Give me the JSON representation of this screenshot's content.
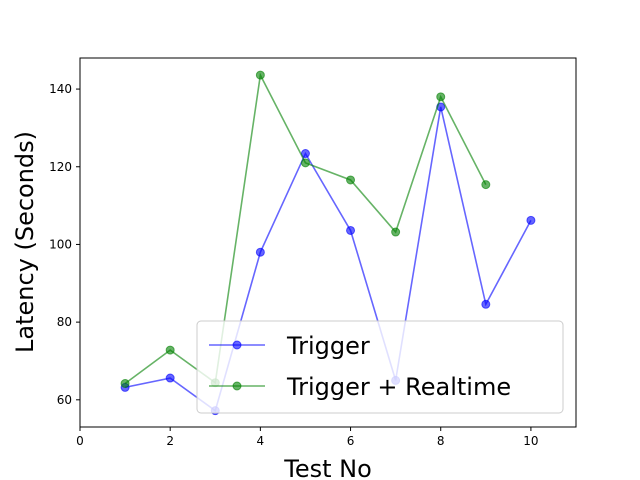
{
  "chart_data": {
    "type": "line",
    "xlabel": "Test No",
    "ylabel": "Latency (Seconds)",
    "xlim": [
      0,
      11
    ],
    "ylim": [
      53,
      148
    ],
    "xticks": [
      0,
      2,
      4,
      6,
      8,
      10
    ],
    "yticks": [
      60,
      80,
      100,
      120,
      140
    ],
    "grid": false,
    "legend_position": "lower-right",
    "series": [
      {
        "name": "Trigger",
        "color": "#0000ff",
        "x": [
          1,
          2,
          3,
          4,
          5,
          6,
          7,
          8,
          9,
          10
        ],
        "y": [
          63.2,
          65.6,
          57.2,
          98.0,
          123.4,
          103.6,
          65.0,
          135.4,
          84.6,
          106.2
        ]
      },
      {
        "name": "Trigger + Realtime",
        "color": "#008000",
        "x": [
          1,
          2,
          3,
          4,
          5,
          6,
          7,
          8,
          9
        ],
        "y": [
          64.2,
          72.8,
          64.4,
          143.6,
          121.0,
          116.6,
          103.2,
          138.0,
          115.4
        ]
      }
    ]
  }
}
